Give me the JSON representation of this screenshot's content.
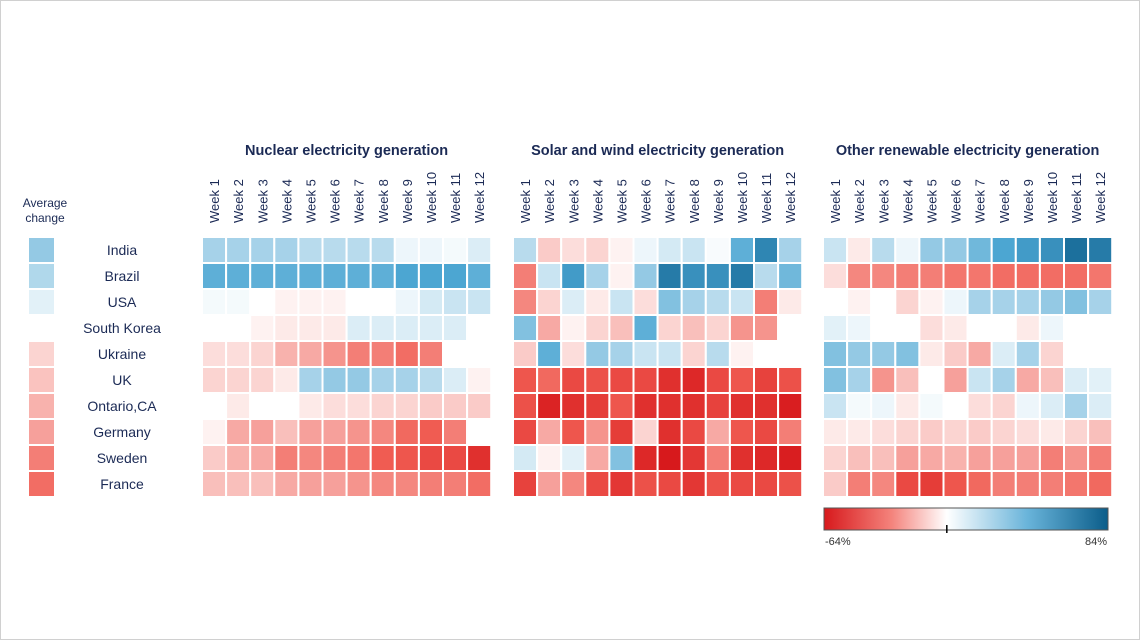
{
  "colors": {
    "neg_max": "#d7191c",
    "mid": "#ffffff",
    "pos_max": "#0b5d8a",
    "text": "#1b2a55"
  },
  "chart_data": {
    "type": "heatmap",
    "row_header": [
      "Average",
      "change"
    ],
    "weeks": [
      "Week 1",
      "Week 2",
      "Week 3",
      "Week 4",
      "Week 5",
      "Week 6",
      "Week 7",
      "Week 8",
      "Week 9",
      "Week 10",
      "Week 11",
      "Week 12"
    ],
    "countries": [
      "India",
      "Brazil",
      "USA",
      "South Korea",
      "Ukraine",
      "UK",
      "Ontario,CA",
      "Germany",
      "Sweden",
      "France"
    ],
    "average_change": [
      30,
      22,
      8,
      0,
      -10,
      -14,
      -18,
      -22,
      -30,
      -34
    ],
    "color_scale": {
      "min": -64,
      "max": 84,
      "min_label": "-64%",
      "max_label": "84%"
    },
    "panels": [
      {
        "title": "Nuclear electricity generation",
        "values": [
          [
            25,
            25,
            25,
            25,
            20,
            20,
            20,
            20,
            5,
            5,
            3,
            10
          ],
          [
            45,
            45,
            45,
            45,
            45,
            45,
            45,
            45,
            50,
            50,
            50,
            45
          ],
          [
            3,
            3,
            0,
            -3,
            -3,
            -3,
            0,
            0,
            5,
            12,
            15,
            15
          ],
          [
            null,
            0,
            -3,
            -5,
            -5,
            -5,
            10,
            10,
            10,
            10,
            10,
            null
          ],
          [
            -8,
            -8,
            -10,
            -18,
            -20,
            -25,
            -30,
            -30,
            -34,
            -30,
            null,
            null
          ],
          [
            -10,
            -10,
            -10,
            -5,
            25,
            30,
            30,
            25,
            25,
            20,
            10,
            -3
          ],
          [
            null,
            -5,
            0,
            0,
            -5,
            -8,
            -8,
            -10,
            -10,
            -12,
            -12,
            -12
          ],
          [
            -3,
            -20,
            -22,
            -15,
            -22,
            -22,
            -25,
            -28,
            -35,
            -38,
            -30,
            null
          ],
          [
            -12,
            -18,
            -20,
            -30,
            -28,
            -30,
            -32,
            -38,
            -40,
            -45,
            -45,
            -55
          ],
          [
            -15,
            -15,
            -15,
            -20,
            -22,
            -22,
            -25,
            -28,
            -28,
            -30,
            -30,
            -34
          ]
        ]
      },
      {
        "title": "Solar and wind electricity generation",
        "values": [
          [
            20,
            -12,
            -8,
            -10,
            -3,
            5,
            12,
            15,
            2,
            45,
            65,
            25
          ],
          [
            -30,
            15,
            55,
            25,
            -3,
            30,
            70,
            60,
            60,
            70,
            20,
            40
          ],
          [
            -28,
            -10,
            10,
            -5,
            15,
            -8,
            35,
            25,
            20,
            15,
            -30,
            -5
          ],
          [
            35,
            -20,
            -3,
            -10,
            -15,
            45,
            -10,
            -15,
            -10,
            -25,
            -25,
            null
          ],
          [
            -12,
            45,
            -8,
            30,
            25,
            15,
            15,
            -10,
            20,
            -3,
            null,
            null
          ],
          [
            -40,
            -35,
            -45,
            -42,
            -45,
            -45,
            -55,
            -58,
            -45,
            -40,
            -48,
            -42
          ],
          [
            -42,
            -60,
            -55,
            -50,
            -40,
            -55,
            -55,
            -55,
            -48,
            -55,
            -55,
            -62
          ],
          [
            -45,
            -20,
            -40,
            -25,
            -50,
            -10,
            -55,
            -45,
            -20,
            -40,
            -45,
            -30
          ],
          [
            12,
            -3,
            8,
            -20,
            35,
            -58,
            -64,
            -52,
            -30,
            -55,
            -58,
            -62
          ],
          [
            -48,
            -22,
            -28,
            -45,
            -52,
            -42,
            -45,
            -52,
            -42,
            -45,
            -45,
            -42
          ]
        ]
      },
      {
        "title": "Other renewable electricity generation",
        "values": [
          [
            15,
            -5,
            20,
            5,
            30,
            30,
            40,
            50,
            55,
            60,
            75,
            70
          ],
          [
            -8,
            -28,
            -28,
            -30,
            -30,
            -32,
            -32,
            -34,
            -34,
            -34,
            -34,
            -32
          ],
          [
            0,
            -3,
            0,
            -10,
            -3,
            5,
            25,
            25,
            25,
            30,
            35,
            25
          ],
          [
            8,
            5,
            null,
            null,
            -8,
            -5,
            0,
            0,
            -5,
            5,
            null,
            null
          ],
          [
            35,
            30,
            30,
            35,
            -5,
            -12,
            -20,
            10,
            25,
            -10,
            null,
            null
          ],
          [
            35,
            25,
            -25,
            -15,
            0,
            -22,
            15,
            25,
            -20,
            -15,
            10,
            8
          ],
          [
            15,
            3,
            5,
            -5,
            3,
            0,
            -8,
            -10,
            5,
            10,
            25,
            10
          ],
          [
            -5,
            -5,
            -8,
            -10,
            -12,
            -10,
            -12,
            -10,
            -8,
            -5,
            -10,
            -15
          ],
          [
            -10,
            -15,
            -15,
            -22,
            -20,
            -18,
            -22,
            -22,
            -22,
            -30,
            -25,
            -30
          ],
          [
            -12,
            -30,
            -28,
            -45,
            -50,
            -40,
            -35,
            -30,
            -30,
            -30,
            -32,
            -35
          ]
        ]
      }
    ]
  }
}
